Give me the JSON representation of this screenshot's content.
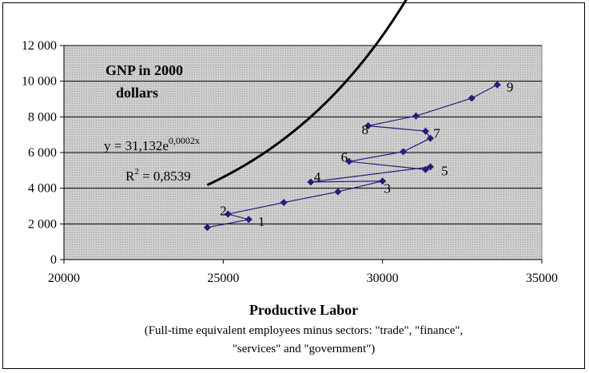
{
  "chart_data": {
    "type": "scatter",
    "title_lines": [
      "GNP in 2000",
      "dollars"
    ],
    "equation": {
      "base": "y = 31,132e",
      "exponent": "0,0002x"
    },
    "r_squared": {
      "base": "R",
      "exponent": "2",
      "value": " = 0,8539"
    },
    "xlabel": "Productive Labor",
    "xlabel_sub_lines": [
      "(Full-time equivalent employees minus sectors: \"trade\", \"finance\",",
      "\"services\" and \"government\")"
    ],
    "xlim": [
      20000,
      35000
    ],
    "ylim": [
      0,
      12000
    ],
    "x_ticks": [
      20000,
      25000,
      30000,
      35000
    ],
    "x_tick_labels": [
      "20000",
      "25000",
      "30000",
      "35000"
    ],
    "y_ticks": [
      0,
      2000,
      4000,
      6000,
      8000,
      10000,
      12000
    ],
    "y_tick_labels": [
      "0",
      "2 000",
      "4 000",
      "6 000",
      "8 000",
      "10 000",
      "12 000"
    ],
    "grid": "horizontal",
    "plot_background": "#c8c8c8",
    "series": [
      {
        "color": "#2a1a7a",
        "points": [
          {
            "x": 24500,
            "y": 1800
          },
          {
            "x": 25800,
            "y": 2250
          },
          {
            "x": 25150,
            "y": 2550
          },
          {
            "x": 26900,
            "y": 3200
          },
          {
            "x": 28600,
            "y": 3800
          },
          {
            "x": 30000,
            "y": 4400
          },
          {
            "x": 27750,
            "y": 4350
          },
          {
            "x": 31500,
            "y": 5200
          },
          {
            "x": 31350,
            "y": 5050
          },
          {
            "x": 28950,
            "y": 5500
          },
          {
            "x": 30650,
            "y": 6050
          },
          {
            "x": 31500,
            "y": 6800
          },
          {
            "x": 31350,
            "y": 7200
          },
          {
            "x": 29550,
            "y": 7500
          },
          {
            "x": 31050,
            "y": 8050
          },
          {
            "x": 32800,
            "y": 9050
          },
          {
            "x": 33600,
            "y": 9800
          }
        ]
      }
    ],
    "trendline": {
      "type": "exponential",
      "a": 31.132,
      "b": 0.0002,
      "x_from": 24500,
      "x_to": 33600,
      "color": "#000000"
    },
    "point_labels": [
      {
        "text": "1",
        "x": 26200,
        "y": 2150
      },
      {
        "text": "2",
        "x": 25000,
        "y": 2750
      },
      {
        "text": "3",
        "x": 30150,
        "y": 4000
      },
      {
        "text": "4",
        "x": 27950,
        "y": 4650
      },
      {
        "text": "5",
        "x": 31950,
        "y": 5000
      },
      {
        "text": "6",
        "x": 28800,
        "y": 5750
      },
      {
        "text": "7",
        "x": 31700,
        "y": 7100
      },
      {
        "text": "8",
        "x": 29450,
        "y": 7300
      },
      {
        "text": "9",
        "x": 34000,
        "y": 9700
      }
    ]
  }
}
